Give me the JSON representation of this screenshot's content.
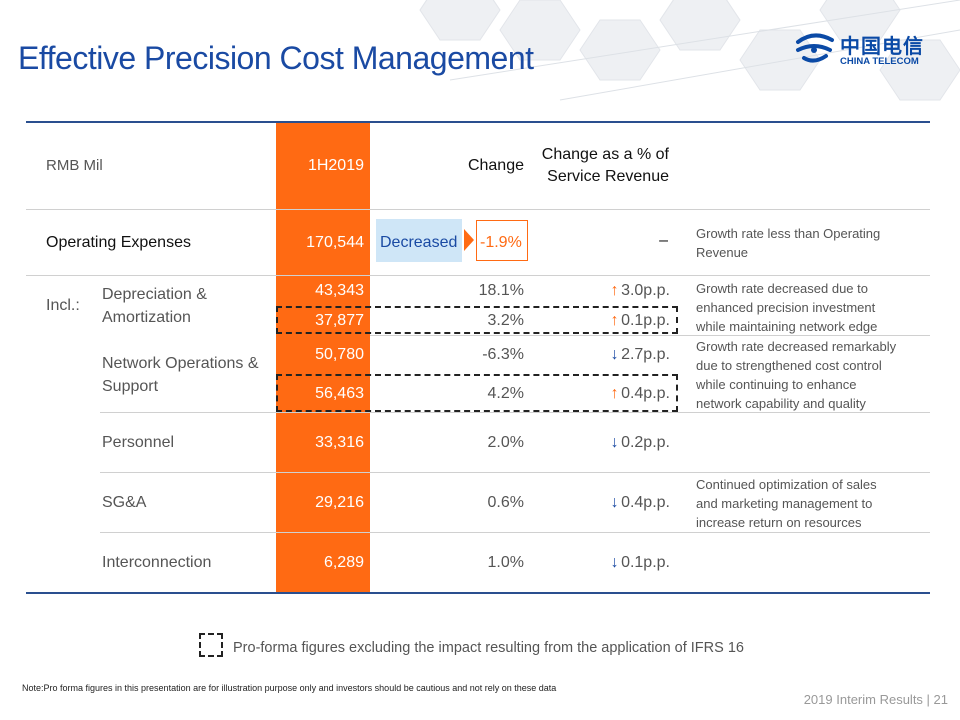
{
  "title": "Effective Precision Cost Management",
  "logo": {
    "chinese": "中国电信",
    "english": "CHINA TELECOM"
  },
  "table": {
    "header": {
      "unit": "RMB Mil",
      "period": "1H2019",
      "change": "Change",
      "change_pct_line1": "Change as a % of",
      "change_pct_line2": "Service Revenue"
    },
    "opex": {
      "label": "Operating Expenses",
      "value": "170,544",
      "status": "Decreased",
      "change": "-1.9%",
      "pct_rev": "–",
      "note": [
        "Growth rate less than Operating",
        "Revenue"
      ]
    },
    "incl_label": "Incl.:",
    "da": {
      "label": [
        "Depreciation &",
        "Amortization"
      ],
      "value": "43,343",
      "change": "18.1%",
      "pct_rev": "3.0p.p.",
      "pf_value": "37,877",
      "pf_change": "3.2%",
      "pf_pct_rev": "0.1p.p.",
      "note": [
        "Growth rate decreased due to",
        "enhanced precision investment",
        "while maintaining network edge"
      ]
    },
    "nos": {
      "label": [
        "Network Operations &",
        "Support"
      ],
      "value": "50,780",
      "change": "-6.3%",
      "pct_rev": "2.7p.p.",
      "pf_value": "56,463",
      "pf_change": "4.2%",
      "pf_pct_rev": "0.4p.p.",
      "note": [
        "Growth rate decreased remarkably",
        "due to strengthened cost control",
        "while continuing to enhance",
        "network capability and quality"
      ]
    },
    "personnel": {
      "label": "Personnel",
      "value": "33,316",
      "change": "2.0%",
      "pct_rev": "0.2p.p."
    },
    "sga": {
      "label": "SG&A",
      "value": "29,216",
      "change": "0.6%",
      "pct_rev": "0.4p.p.",
      "note": [
        "Continued optimization of sales",
        "and marketing management to",
        "increase return on resources"
      ]
    },
    "interconnection": {
      "label": "Interconnection",
      "value": "6,289",
      "change": "1.0%",
      "pct_rev": "0.1p.p."
    }
  },
  "legend": "Pro-forma figures excluding the impact resulting from the application of IFRS 16",
  "footnote": "Note:Pro forma figures in this presentation are for illustration purpose only and investors should be cautious and not rely on these data",
  "footer": "2019 Interim Results | 21",
  "colors": {
    "accent": "#ff6a13",
    "title_blue": "#1a4aa3",
    "decreased_bg": "#cfe6f7"
  }
}
